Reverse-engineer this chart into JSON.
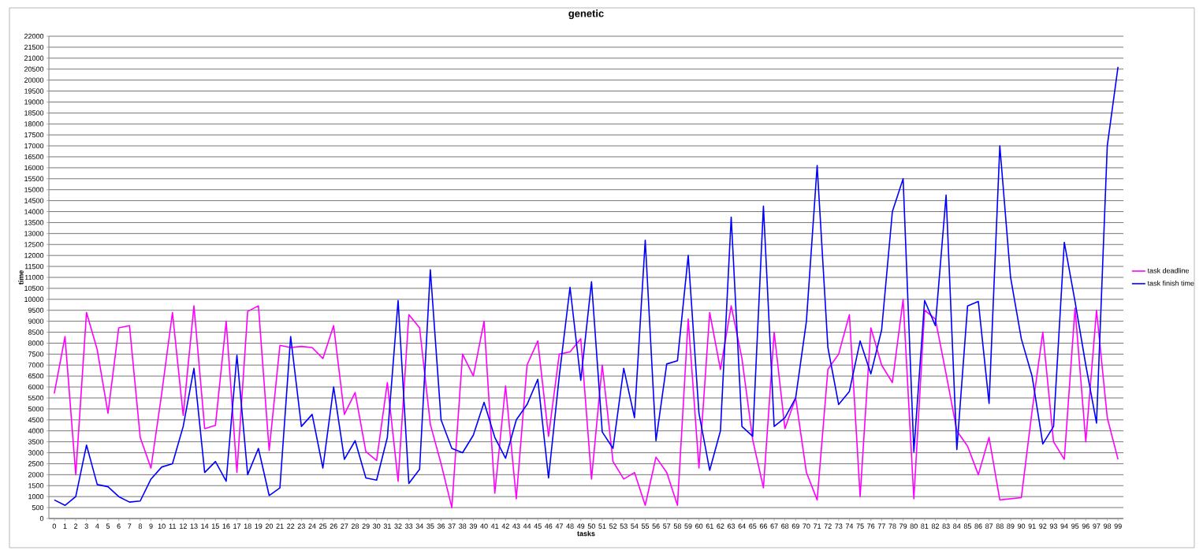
{
  "chart_data": {
    "type": "line",
    "title": "genetic",
    "xlabel": "tasks",
    "ylabel": "time",
    "categories": [
      "0",
      "1",
      "2",
      "3",
      "4",
      "5",
      "6",
      "7",
      "8",
      "9",
      "10",
      "11",
      "12",
      "13",
      "14",
      "15",
      "16",
      "17",
      "18",
      "19",
      "20",
      "21",
      "22",
      "23",
      "24",
      "25",
      "26",
      "27",
      "28",
      "29",
      "30",
      "31",
      "32",
      "33",
      "34",
      "35",
      "36",
      "37",
      "38",
      "39",
      "40",
      "41",
      "42",
      "43",
      "44",
      "45",
      "46",
      "47",
      "48",
      "49",
      "50",
      "51",
      "52",
      "53",
      "54",
      "55",
      "56",
      "57",
      "58",
      "59",
      "60",
      "61",
      "62",
      "63",
      "64",
      "65",
      "66",
      "67",
      "68",
      "69",
      "70",
      "71",
      "72",
      "73",
      "74",
      "75",
      "76",
      "77",
      "78",
      "79",
      "80",
      "81",
      "82",
      "83",
      "84",
      "85",
      "86",
      "87",
      "88",
      "89",
      "90",
      "91",
      "92",
      "93",
      "94",
      "95",
      "96",
      "97",
      "98",
      "99"
    ],
    "series": [
      {
        "name": "task deadline",
        "color": "#ff00ff",
        "values": [
          5700,
          8300,
          2000,
          9400,
          7700,
          4800,
          8700,
          8800,
          3700,
          2300,
          5700,
          9400,
          4700,
          9700,
          4100,
          4250,
          9000,
          2100,
          9450,
          9700,
          3100,
          7900,
          7800,
          7850,
          7800,
          7300,
          8800,
          4750,
          5750,
          3050,
          2650,
          6200,
          1700,
          9300,
          8700,
          4300,
          2500,
          500,
          7500,
          6500,
          9000,
          1150,
          6050,
          900,
          7000,
          8100,
          3750,
          7500,
          7600,
          8200,
          1800,
          7000,
          2600,
          1800,
          2100,
          600,
          2800,
          2100,
          600,
          9100,
          2300,
          9400,
          6800,
          9700,
          7300,
          3600,
          1400,
          8500,
          4100,
          5500,
          2100,
          850,
          6800,
          7500,
          9300,
          1000,
          8700,
          7000,
          6200,
          10000,
          900,
          9500,
          9100,
          6600,
          4000,
          3300,
          2000,
          3700,
          850,
          900,
          950,
          4900,
          8500,
          3500,
          2700,
          9600,
          3500,
          9500,
          4600,
          2700
        ]
      },
      {
        "name": "task finish time",
        "color": "#0000ff",
        "values": [
          850,
          600,
          1000,
          3350,
          1550,
          1450,
          1000,
          750,
          800,
          1800,
          2350,
          2500,
          4200,
          6850,
          2100,
          2600,
          1700,
          7450,
          2000,
          3200,
          1050,
          1400,
          8300,
          4200,
          4750,
          2300,
          6000,
          2700,
          3550,
          1850,
          1750,
          3700,
          9950,
          1600,
          2250,
          11350,
          4500,
          3200,
          3000,
          3800,
          5300,
          3700,
          2750,
          4500,
          5200,
          6350,
          1850,
          6500,
          10550,
          6300,
          10800,
          3950,
          3200,
          6850,
          4600,
          12700,
          3550,
          7050,
          7200,
          12000,
          4800,
          2200,
          4000,
          13750,
          4200,
          3750,
          14250,
          4200,
          4600,
          5500,
          9000,
          16100,
          7800,
          5200,
          5800,
          8100,
          6600,
          8600,
          14000,
          15500,
          3050,
          9950,
          8800,
          14750,
          3150,
          9700,
          9900,
          5250,
          17000,
          11000,
          8200,
          6500,
          3400,
          4200,
          12600,
          9900,
          7000,
          4350,
          17000,
          20600
        ]
      }
    ],
    "ylim": [
      0,
      22000
    ],
    "yticks": [
      0,
      500,
      1000,
      1500,
      2000,
      2500,
      3000,
      3500,
      4000,
      4500,
      5000,
      5500,
      6000,
      6500,
      7000,
      7500,
      8000,
      8500,
      9000,
      9500,
      10000,
      10500,
      11000,
      11500,
      12000,
      12500,
      13000,
      13500,
      14000,
      14500,
      15000,
      15500,
      16000,
      16500,
      17000,
      17500,
      18000,
      18500,
      19000,
      19500,
      20000,
      20500,
      21000,
      21500,
      22000
    ],
    "grid": "y",
    "legend": "right"
  }
}
